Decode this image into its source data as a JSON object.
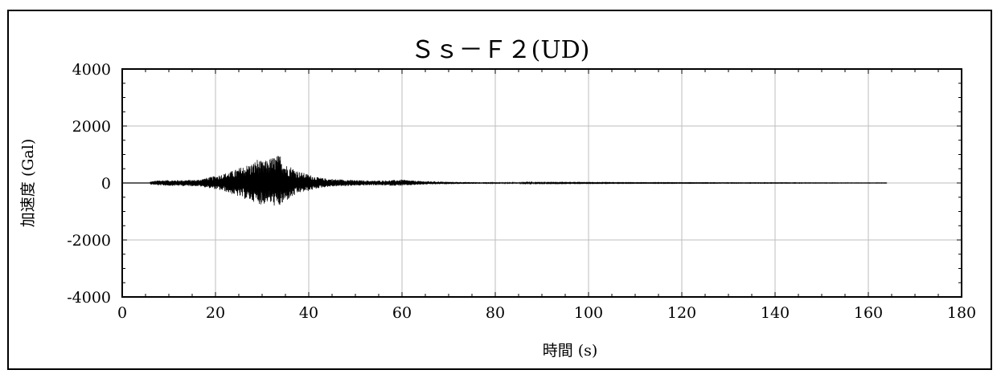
{
  "chart_data": {
    "type": "line",
    "title": "Ｓｓ－Ｆ２(UD)",
    "xlabel": "時間 (s)",
    "ylabel": "加速度 (Gal)",
    "xlim": [
      0,
      180
    ],
    "ylim": [
      -4000,
      4000
    ],
    "xticks": [
      0,
      20,
      40,
      60,
      80,
      100,
      120,
      140,
      160,
      180
    ],
    "yticks": [
      4000,
      2000,
      0,
      -2000,
      -4000
    ],
    "xtick_labels": [
      "0",
      "20",
      "40",
      "60",
      "80",
      "100",
      "120",
      "140",
      "160",
      "180"
    ],
    "ytick_labels": [
      "4000",
      "2000",
      "0",
      "-2000",
      "-4000"
    ],
    "grid": true,
    "legend": "none",
    "series": [
      {
        "color": "#000000",
        "envelope": {
          "t": [
            6,
            8,
            10,
            12,
            14,
            16,
            18,
            20,
            22,
            24,
            26,
            28,
            29,
            30,
            31,
            32,
            33,
            34,
            35,
            36,
            37,
            38,
            40,
            42,
            44,
            46,
            48,
            50,
            52,
            54,
            56,
            58,
            60,
            62,
            64,
            66,
            70,
            75,
            80,
            90,
            100,
            110,
            120,
            130,
            140,
            150,
            160,
            164
          ],
          "max": [
            50,
            100,
            100,
            100,
            110,
            110,
            180,
            250,
            340,
            450,
            600,
            700,
            850,
            750,
            800,
            900,
            950,
            1000,
            650,
            600,
            500,
            400,
            300,
            200,
            150,
            130,
            120,
            100,
            90,
            80,
            90,
            100,
            120,
            90,
            70,
            60,
            40,
            30,
            25,
            15,
            12,
            10,
            10,
            8,
            8,
            6,
            5,
            5
          ],
          "min": [
            -50,
            -90,
            -100,
            -100,
            -110,
            -110,
            -160,
            -220,
            -300,
            -420,
            -550,
            -650,
            -700,
            -800,
            -680,
            -750,
            -850,
            -820,
            -650,
            -550,
            -450,
            -350,
            -280,
            -190,
            -140,
            -120,
            -110,
            -100,
            -90,
            -80,
            -90,
            -100,
            -100,
            -80,
            -60,
            -50,
            -40,
            -30,
            -25,
            -15,
            -12,
            -10,
            -10,
            -8,
            -8,
            -6,
            -5,
            -5
          ]
        }
      }
    ]
  }
}
